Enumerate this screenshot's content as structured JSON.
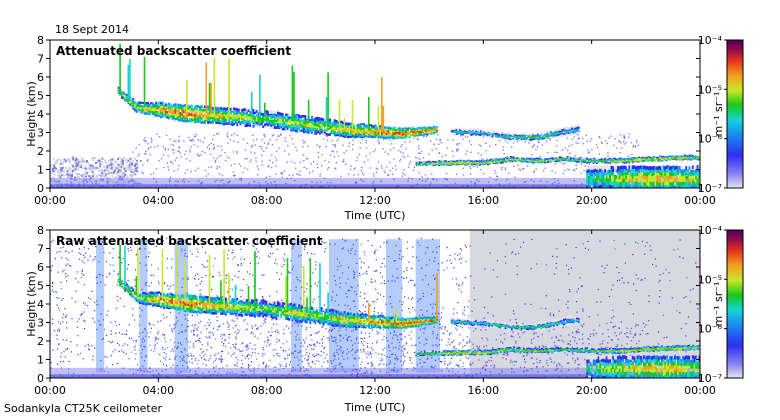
{
  "date_label": "18 Sept 2014",
  "footer_label": "Sodankyla CT25K ceilometer",
  "colormap": [
    "#e4e4ee",
    "#2e2ef0",
    "#1b8cf0",
    "#12d4d4",
    "#19c819",
    "#c8e628",
    "#f0a01e",
    "#e6321e",
    "#8c0a50",
    "#50005a"
  ],
  "chart_data": [
    {
      "type": "heatmap",
      "title": "Attenuated backscatter coefficient",
      "xlabel": "Time (UTC)",
      "ylabel": "Height (km)",
      "x_ticks": [
        "00:00",
        "04:00",
        "08:00",
        "12:00",
        "16:00",
        "20:00",
        "00:00"
      ],
      "x_range_hours": [
        0,
        24
      ],
      "y_ticks": [
        0,
        1,
        2,
        3,
        4,
        5,
        6,
        7,
        8
      ],
      "ylim": [
        0,
        8
      ],
      "colorbar": {
        "unit": "m⁻¹ sr⁻¹",
        "tick_labels": [
          "10⁻⁷",
          "10⁻⁶",
          "10⁻⁵",
          "10⁻⁴"
        ],
        "log_range": [
          -7,
          -4
        ]
      },
      "layers": [
        {
          "name": "low cloud layer",
          "t": [
            2.5,
            3.2,
            4,
            5,
            6,
            7,
            8,
            9,
            10,
            11,
            12,
            13,
            14.3
          ],
          "h": [
            5.3,
            4.4,
            4.3,
            4.1,
            4.0,
            3.9,
            3.8,
            3.6,
            3.4,
            3.2,
            3.1,
            3.0,
            3.2
          ],
          "log_beta": [
            -5.4,
            -5.2,
            -4.9,
            -4.7,
            -5.0,
            -5.2,
            -5.4,
            -5.1,
            -5.3,
            -5.0,
            -4.9,
            -4.7,
            -4.8
          ],
          "thickness_km": [
            0.4,
            0.5,
            0.7,
            0.8,
            0.8,
            0.8,
            0.8,
            0.8,
            0.8,
            0.7,
            0.6,
            0.5,
            0.3
          ]
        },
        {
          "name": "upper layer after 14h",
          "t": [
            14.8,
            16,
            17,
            18,
            19,
            19.5
          ],
          "h": [
            3.1,
            3.0,
            2.8,
            2.8,
            3.1,
            3.2
          ],
          "log_beta": [
            -5.7,
            -5.8,
            -5.6,
            -5.5,
            -5.8,
            -5.9
          ],
          "thickness_km": [
            0.3,
            0.3,
            0.3,
            0.3,
            0.4,
            0.4
          ]
        },
        {
          "name": "low layer after 14h",
          "t": [
            13.5,
            15,
            16,
            17,
            18,
            19,
            20,
            21,
            22,
            23,
            24
          ],
          "h": [
            1.35,
            1.4,
            1.4,
            1.6,
            1.5,
            1.6,
            1.5,
            1.5,
            1.6,
            1.65,
            1.7
          ],
          "log_beta": [
            -5.5,
            -4.9,
            -5.0,
            -5.2,
            -5.1,
            -5.4,
            -5.3,
            -5.0,
            -4.9,
            -4.9,
            -5.2
          ],
          "thickness_km": [
            0.2,
            0.2,
            0.2,
            0.2,
            0.2,
            0.2,
            0.2,
            0.2,
            0.2,
            0.2,
            0.2
          ]
        },
        {
          "name": "precipitation near surface",
          "t": [
            19.8,
            21,
            22,
            23,
            24
          ],
          "h": [
            0.6,
            0.6,
            0.6,
            0.6,
            0.6
          ],
          "log_beta": [
            -5.6,
            -5.2,
            -5.0,
            -5.0,
            -5.3
          ],
          "thickness_km": [
            1.2,
            1.2,
            1.2,
            1.2,
            1.2
          ]
        }
      ]
    },
    {
      "type": "heatmap",
      "title": "Raw attenuated backscatter coefficient",
      "xlabel": "Time (UTC)",
      "ylabel": "Height (km)",
      "x_ticks": [
        "00:00",
        "04:00",
        "08:00",
        "12:00",
        "16:00",
        "20:00",
        "00:00"
      ],
      "x_range_hours": [
        0,
        24
      ],
      "y_ticks": [
        0,
        1,
        2,
        3,
        4,
        5,
        6,
        7,
        8
      ],
      "ylim": [
        0,
        8
      ],
      "colorbar": {
        "unit": "m⁻¹ sr⁻¹",
        "tick_labels": [
          "10⁻⁷",
          "10⁻⁶",
          "10⁻⁵",
          "10⁻⁴"
        ],
        "log_range": [
          -7,
          -4
        ]
      },
      "layers": [
        {
          "name": "low cloud layer",
          "t": [
            2.5,
            3.2,
            4,
            5,
            6,
            7,
            8,
            9,
            10,
            11,
            12,
            13,
            14.3
          ],
          "h": [
            5.3,
            4.4,
            4.3,
            4.1,
            4.0,
            3.9,
            3.8,
            3.6,
            3.4,
            3.2,
            3.1,
            3.0,
            3.2
          ],
          "log_beta": [
            -5.4,
            -5.2,
            -4.9,
            -4.7,
            -5.0,
            -5.2,
            -5.4,
            -5.1,
            -5.3,
            -5.0,
            -4.9,
            -4.7,
            -4.8
          ],
          "thickness_km": [
            0.4,
            0.5,
            0.7,
            0.8,
            0.8,
            0.8,
            0.8,
            0.8,
            0.8,
            0.7,
            0.6,
            0.5,
            0.3
          ]
        },
        {
          "name": "upper layer after 14h",
          "t": [
            14.8,
            16,
            17,
            18,
            19,
            19.5
          ],
          "h": [
            3.1,
            3.0,
            2.8,
            2.8,
            3.1,
            3.2
          ],
          "log_beta": [
            -5.7,
            -5.8,
            -5.6,
            -5.5,
            -5.8,
            -5.9
          ],
          "thickness_km": [
            0.3,
            0.3,
            0.3,
            0.3,
            0.4,
            0.4
          ]
        },
        {
          "name": "low layer after 14h",
          "t": [
            13.5,
            15,
            16,
            17,
            18,
            19,
            20,
            21,
            22,
            23,
            24
          ],
          "h": [
            1.35,
            1.4,
            1.4,
            1.6,
            1.5,
            1.6,
            1.5,
            1.5,
            1.6,
            1.65,
            1.7
          ],
          "log_beta": [
            -5.5,
            -4.9,
            -5.0,
            -5.2,
            -5.1,
            -5.4,
            -5.3,
            -5.0,
            -4.9,
            -4.9,
            -5.2
          ],
          "thickness_km": [
            0.2,
            0.2,
            0.2,
            0.2,
            0.2,
            0.2,
            0.2,
            0.2,
            0.2,
            0.2,
            0.2
          ]
        },
        {
          "name": "precipitation near surface",
          "t": [
            19.8,
            21,
            22,
            23,
            24
          ],
          "h": [
            0.6,
            0.6,
            0.6,
            0.6,
            0.6
          ],
          "log_beta": [
            -5.6,
            -5.2,
            -5.0,
            -5.0,
            -5.3
          ],
          "thickness_km": [
            1.2,
            1.2,
            1.2,
            1.2,
            1.2
          ]
        }
      ]
    }
  ]
}
